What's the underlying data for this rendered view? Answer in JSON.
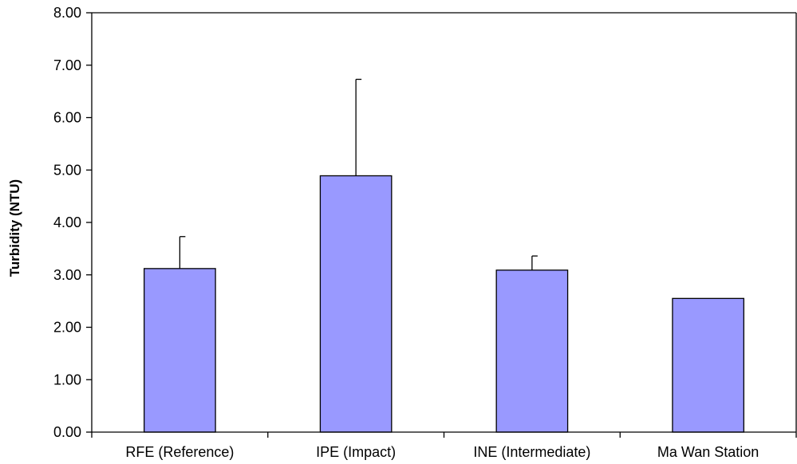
{
  "chart_data": {
    "type": "bar",
    "title": "",
    "xlabel": "",
    "ylabel": "Turbidity (NTU)",
    "categories": [
      "RFE (Reference)",
      "IPE (Impact)",
      "INE (Intermediate)",
      "Ma Wan Station"
    ],
    "series": [
      {
        "values": [
          3.12,
          4.89,
          3.09,
          2.55
        ],
        "error_plus": [
          0.61,
          1.84,
          0.27,
          null
        ],
        "color": "#9999ff"
      }
    ],
    "ylim": [
      0,
      8
    ],
    "yticks": [
      0,
      1,
      2,
      3,
      4,
      5,
      6,
      7,
      8
    ],
    "ytick_labels": [
      "0.00",
      "1.00",
      "2.00",
      "3.00",
      "4.00",
      "5.00",
      "6.00",
      "7.00",
      "8.00"
    ],
    "grid": false,
    "legend": "none"
  }
}
